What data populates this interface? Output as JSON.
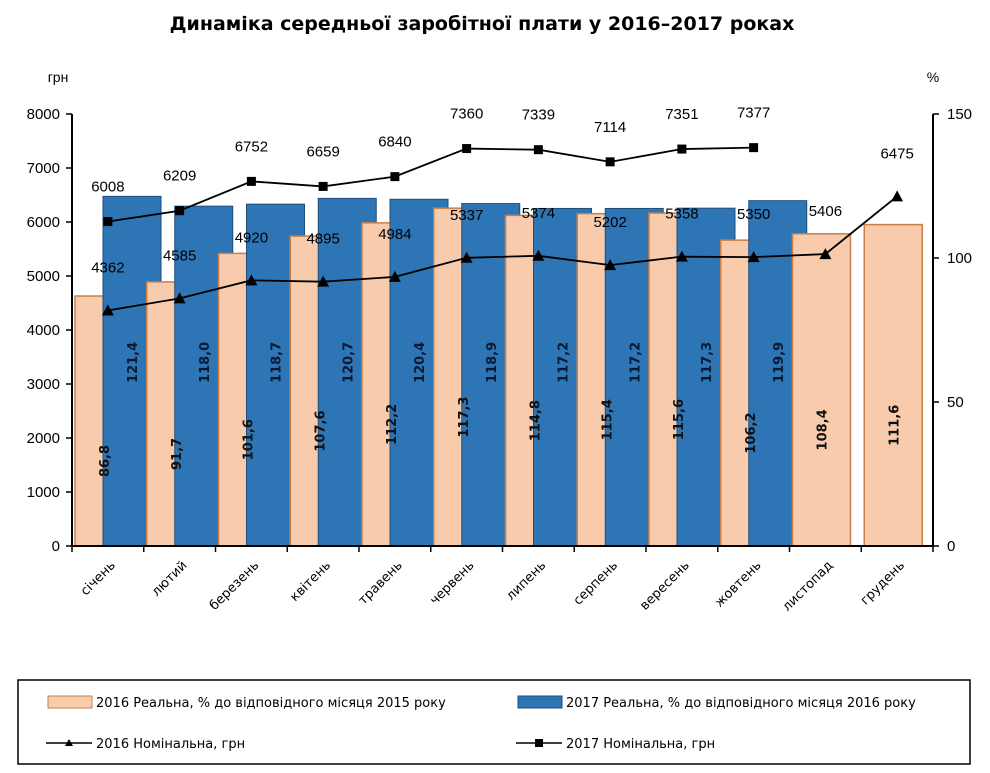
{
  "chart_data": {
    "type": "bar",
    "title": "Динаміка середньої заробітної плати у 2016–2017 роках",
    "xlabel": "",
    "ylabel": "грн",
    "y2label": "%",
    "ylim": [
      0,
      8000
    ],
    "y2lim": [
      0,
      150
    ],
    "yticks": [
      0,
      1000,
      2000,
      3000,
      4000,
      5000,
      6000,
      7000,
      8000
    ],
    "y2ticks": [
      0,
      50,
      100,
      150
    ],
    "grid": false,
    "legend_position": "bottom",
    "categories": [
      "січень",
      "лютий",
      "березень",
      "квітень",
      "травень",
      "червень",
      "липень",
      "серпень",
      "вересень",
      "жовтень",
      "листопад",
      "грудень"
    ],
    "series": [
      {
        "name": "2016 Реальна, % до відповідного місяця 2015 року",
        "type": "bar",
        "axis": "right",
        "color": "#F8CBAD",
        "border": "#C7804A",
        "labels": [
          "86,8",
          "91,7",
          "101,6",
          "107,6",
          "112,2",
          "117,3",
          "114,8",
          "115,4",
          "115,6",
          "106,2",
          "108,4",
          "111,6"
        ],
        "values": [
          86.8,
          91.7,
          101.6,
          107.6,
          112.2,
          117.3,
          114.8,
          115.4,
          115.6,
          106.2,
          108.4,
          111.6
        ]
      },
      {
        "name": "2017 Реальна, % до відповідного місяця 2016 року",
        "type": "bar",
        "axis": "right",
        "color": "#2E75B6",
        "border": "#1F4E79",
        "labels": [
          "121,4",
          "118,0",
          "118,7",
          "120,7",
          "120,4",
          "118,9",
          "117,2",
          "117,2",
          "117,3",
          "119,9",
          null,
          null
        ],
        "values": [
          121.4,
          118.0,
          118.7,
          120.7,
          120.4,
          118.9,
          117.2,
          117.2,
          117.3,
          119.9,
          null,
          null
        ]
      },
      {
        "name": "2016 Номінальна, грн",
        "type": "line",
        "axis": "left",
        "marker": "triangle",
        "color": "#000000",
        "values": [
          4362,
          4585,
          4920,
          4895,
          4984,
          5337,
          5374,
          5202,
          5358,
          5350,
          5406,
          6475
        ]
      },
      {
        "name": "2017 Номінальна, грн",
        "type": "line",
        "axis": "left",
        "marker": "square",
        "color": "#000000",
        "values": [
          6008,
          6209,
          6752,
          6659,
          6840,
          7360,
          7339,
          7114,
          7351,
          7377,
          null,
          null
        ]
      }
    ]
  }
}
